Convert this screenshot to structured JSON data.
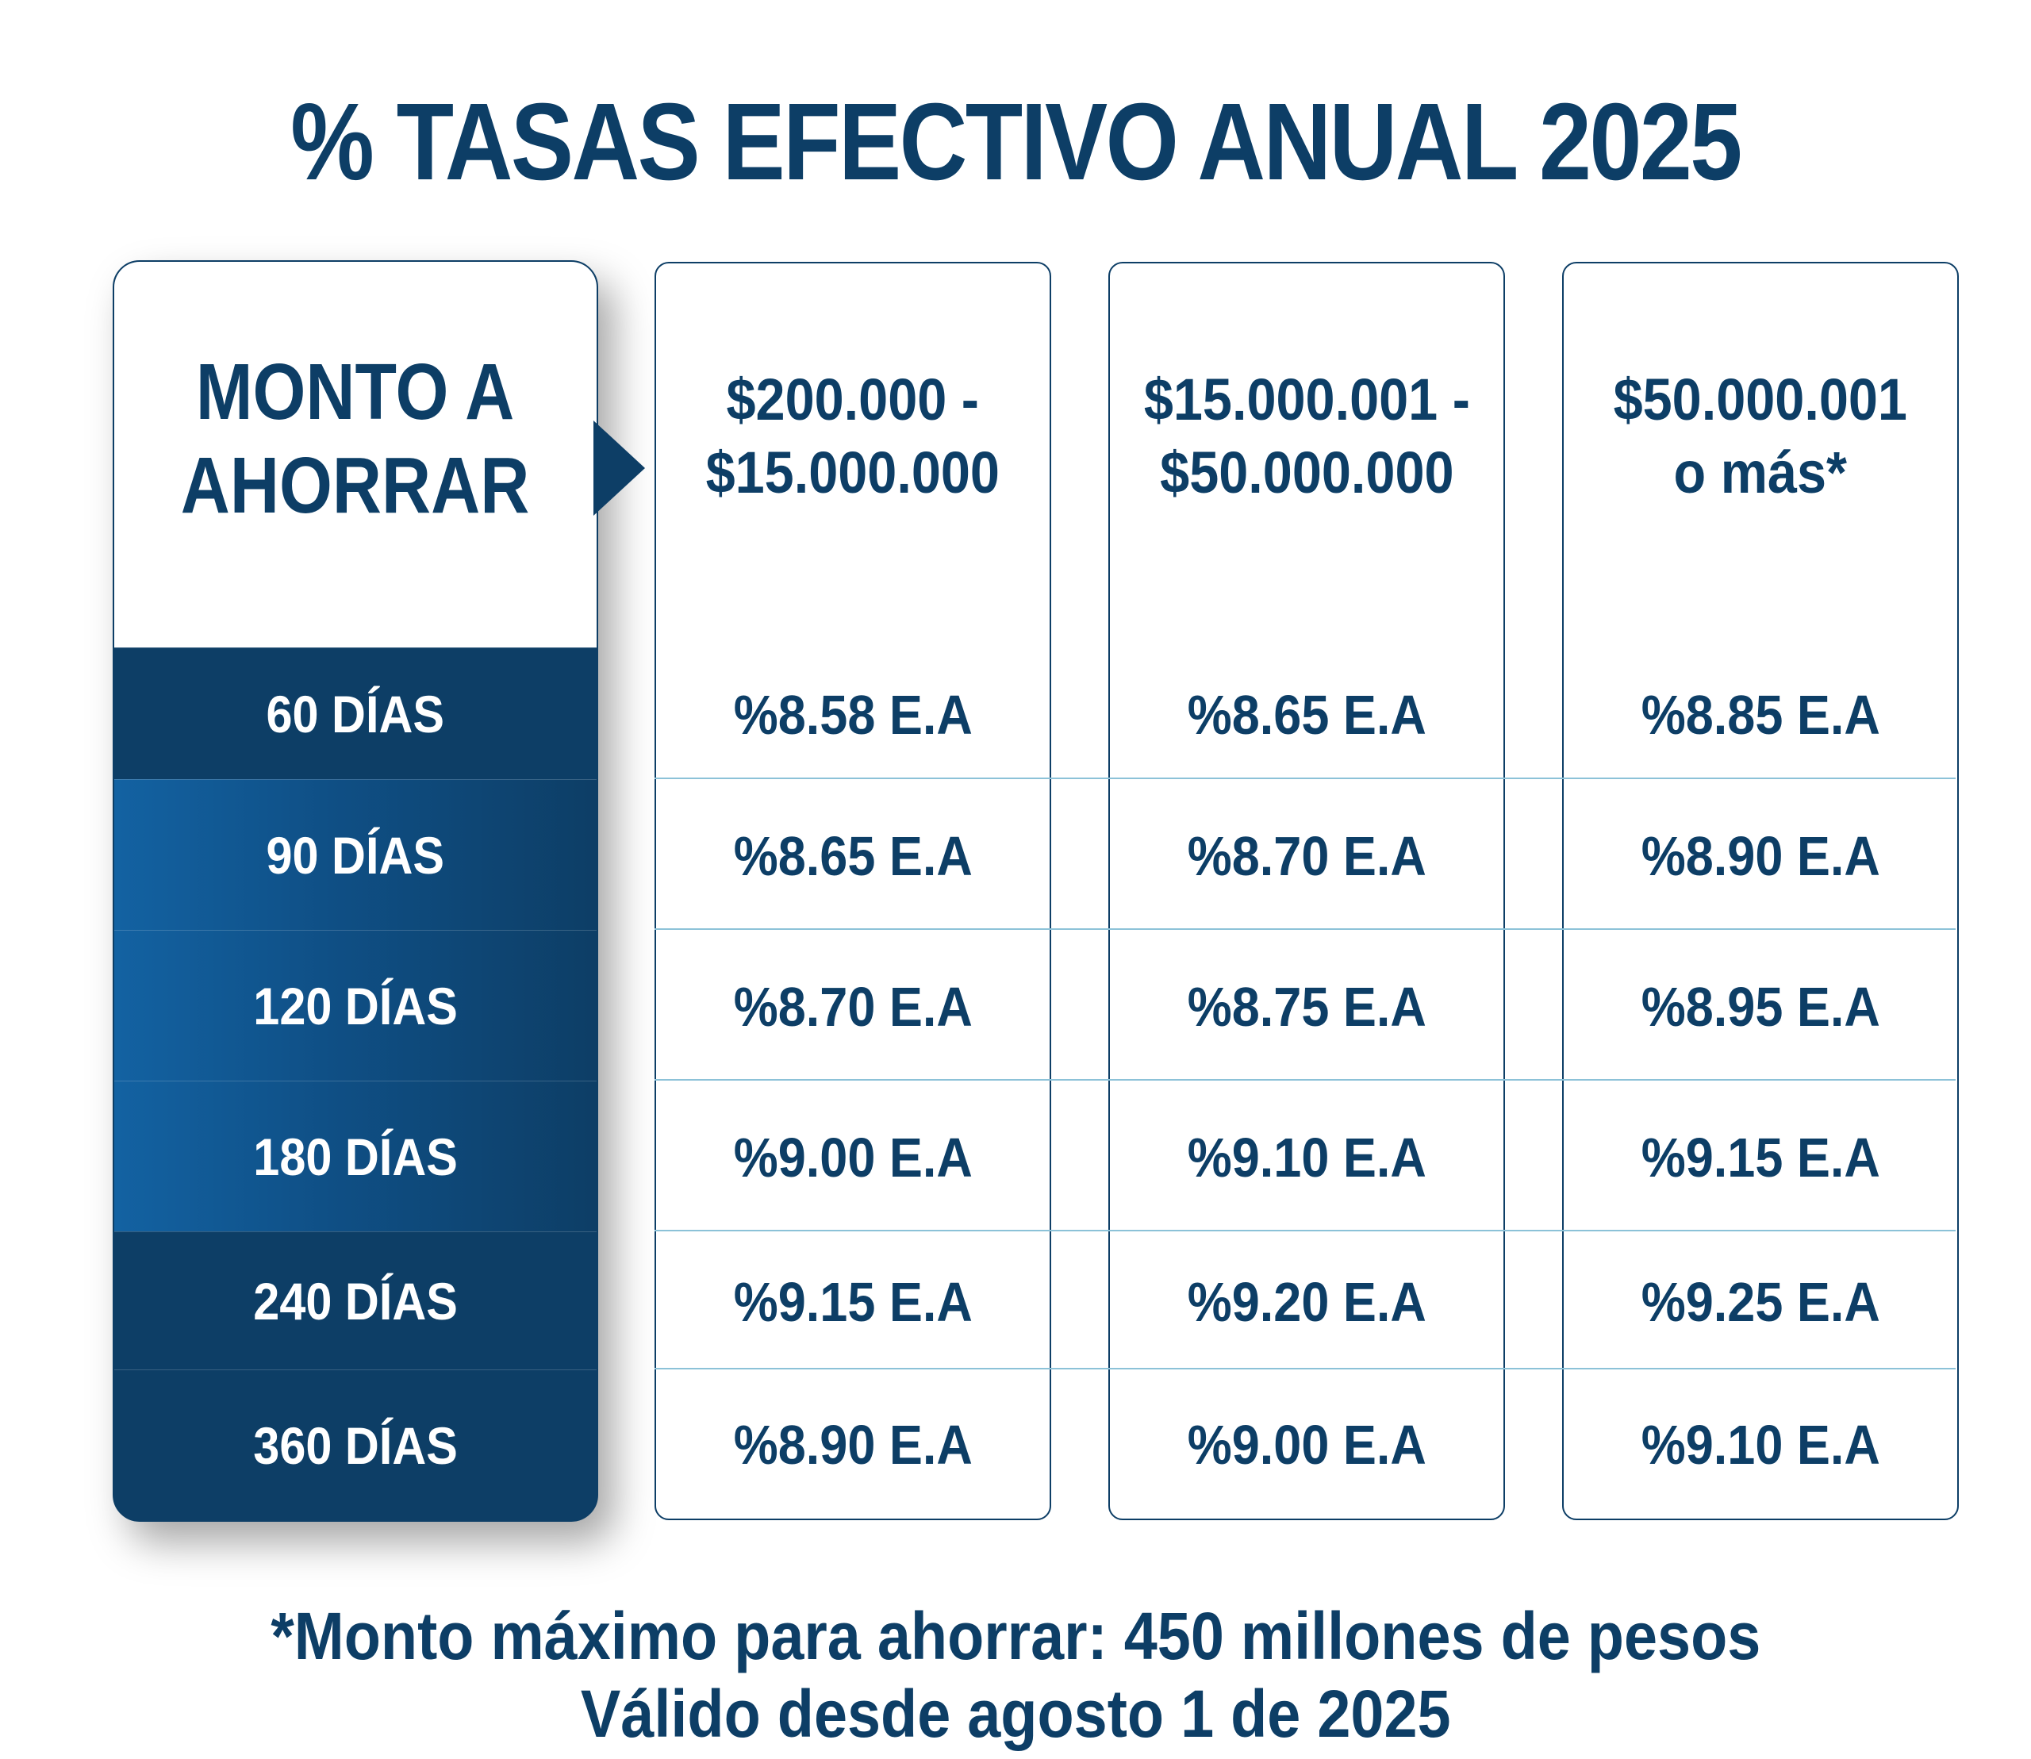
{
  "title": "% TASAS EFECTIVO ANUAL 2025",
  "left_header": "MONTO A\nAHORRAR",
  "terms": [
    "60 DÍAS",
    "90 DÍAS",
    "120 DÍAS",
    "180 DÍAS",
    "240 DÍAS",
    "360 DÍAS"
  ],
  "columns": [
    {
      "header": "$200.000 -\n$15.000.000",
      "rates": [
        "%8.58 E.A",
        "%8.65 E.A",
        "%8.70 E.A",
        "%9.00 E.A",
        "%9.15 E.A",
        "%8.90 E.A"
      ]
    },
    {
      "header": "$15.000.001 -\n$50.000.000",
      "rates": [
        "%8.65 E.A",
        "%8.70 E.A",
        "%8.75 E.A",
        "%9.10 E.A",
        "%9.20 E.A",
        "%9.00 E.A"
      ]
    },
    {
      "header": "$50.000.001\no más*",
      "rates": [
        "%8.85 E.A",
        "%8.90 E.A",
        "%8.95 E.A",
        "%9.15 E.A",
        "%9.25 E.A",
        "%9.10 E.A"
      ]
    }
  ],
  "footnote_1": "*Monto máximo para ahorrar: 450 millones de pesos",
  "footnote_2": "Válido desde agosto 1 de 2025",
  "colors": {
    "primary": "#0d3e66",
    "gradient_light": "#1362a2",
    "grid_line": "#8cc2d8",
    "background": "#ffffff"
  }
}
